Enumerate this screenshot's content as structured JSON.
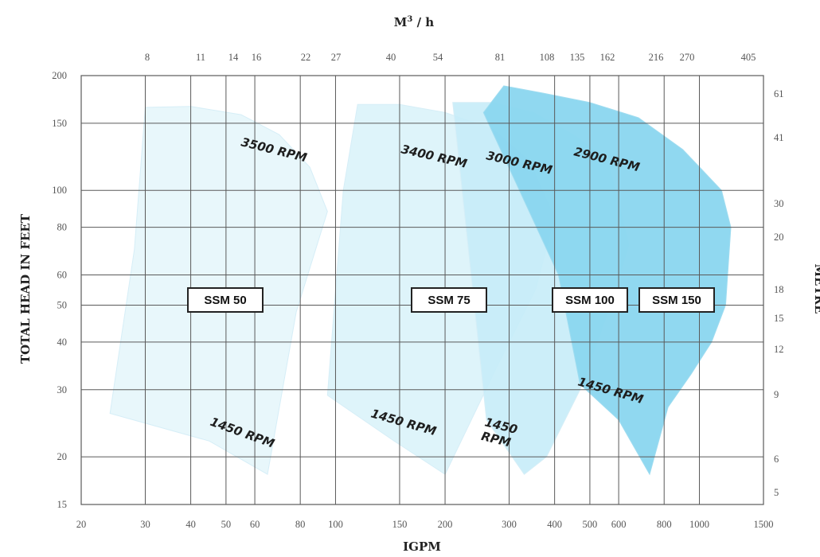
{
  "chart_data": {
    "type": "area",
    "x_bottom_label": "IGPM",
    "x_top_label": "M³ / h",
    "y_left_label": "TOTAL HEAD IN FEET",
    "y_right_label": "METRE",
    "x_scale": "log",
    "y_scale": "log",
    "xlim": [
      20,
      1500
    ],
    "ylim": [
      15,
      200
    ],
    "grid": true,
    "x_ticks": [
      20,
      30,
      40,
      50,
      60,
      80,
      100,
      150,
      200,
      300,
      400,
      500,
      600,
      800,
      1000,
      1500
    ],
    "x_top_ticks": [
      "8",
      "11",
      "14",
      "16",
      "22",
      "27",
      "40",
      "54",
      "81",
      "108",
      "135",
      "162",
      "216",
      "270",
      "405"
    ],
    "y_ticks": [
      15,
      20,
      30,
      40,
      50,
      60,
      80,
      100,
      150,
      200
    ],
    "y_right_ticks": [
      "5",
      "6",
      "9",
      "12",
      "15",
      "18",
      "20",
      "30",
      "41",
      "61"
    ],
    "series": [
      {
        "name": "SSM 50",
        "color": "#e6f6fb",
        "top_speed": "3500 RPM",
        "low_speed": "1450 RPM",
        "outline": [
          [
            24,
            26
          ],
          [
            28,
            70
          ],
          [
            30,
            165
          ],
          [
            40,
            166
          ],
          [
            55,
            158
          ],
          [
            70,
            140
          ],
          [
            85,
            115
          ],
          [
            95,
            88
          ],
          [
            78,
            48
          ],
          [
            65,
            18
          ],
          [
            45,
            22
          ],
          [
            24,
            26
          ]
        ]
      },
      {
        "name": "SSM 75",
        "color": "#daf3fa",
        "top_speed": "3400 RPM",
        "low_speed": "1450 RPM",
        "outline": [
          [
            95,
            29
          ],
          [
            105,
            100
          ],
          [
            115,
            168
          ],
          [
            150,
            168
          ],
          [
            200,
            160
          ],
          [
            270,
            145
          ],
          [
            340,
            120
          ],
          [
            400,
            85
          ],
          [
            355,
            55
          ],
          [
            280,
            35
          ],
          [
            200,
            18
          ],
          [
            145,
            22
          ],
          [
            95,
            29
          ]
        ]
      },
      {
        "name": "SSM 100",
        "color": "#c7ecf8",
        "top_speed": "3000 RPM",
        "low_speed": "1450 RPM",
        "outline": [
          [
            260,
            25
          ],
          [
            210,
            170
          ],
          [
            270,
            170
          ],
          [
            350,
            160
          ],
          [
            450,
            140
          ],
          [
            560,
            120
          ],
          [
            640,
            72
          ],
          [
            570,
            50
          ],
          [
            470,
            30
          ],
          [
            380,
            20
          ],
          [
            330,
            18
          ],
          [
            260,
            25
          ]
        ]
      },
      {
        "name": "SSM 150",
        "color": "#8ad6ef",
        "top_speed": "2900 RPM",
        "low_speed": "1450 RPM",
        "outline": [
          [
            255,
            160
          ],
          [
            290,
            188
          ],
          [
            370,
            180
          ],
          [
            500,
            170
          ],
          [
            680,
            155
          ],
          [
            900,
            128
          ],
          [
            1150,
            100
          ],
          [
            1220,
            80
          ],
          [
            1180,
            50
          ],
          [
            1080,
            40
          ],
          [
            950,
            33
          ],
          [
            820,
            27
          ],
          [
            730,
            18
          ],
          [
            600,
            25
          ],
          [
            470,
            31
          ],
          [
            410,
            60
          ],
          [
            255,
            160
          ]
        ]
      }
    ],
    "rpm_labels": [
      "3500 RPM",
      "3400 RPM",
      "3000 RPM",
      "2900 RPM",
      "1450 RPM",
      "1450 RPM",
      "1450\nRPM",
      "1450 RPM"
    ],
    "model_labels": [
      "SSM 50",
      "SSM 75",
      "SSM 100",
      "SSM 150"
    ]
  }
}
